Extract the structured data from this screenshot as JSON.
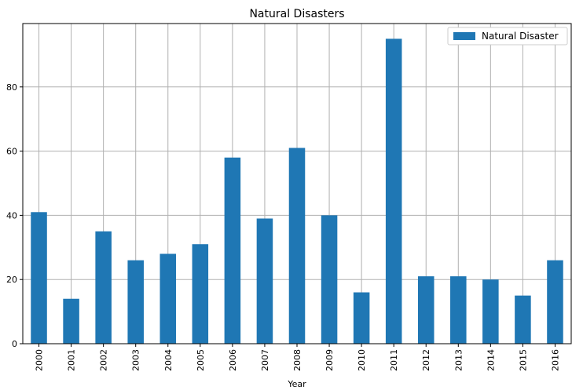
{
  "chart_data": {
    "type": "bar",
    "title": "Natural Disasters",
    "xlabel": "Year",
    "ylabel": "",
    "categories": [
      "2000",
      "2001",
      "2002",
      "2003",
      "2004",
      "2005",
      "2006",
      "2007",
      "2008",
      "2009",
      "2010",
      "2011",
      "2012",
      "2013",
      "2014",
      "2015",
      "2016"
    ],
    "series": [
      {
        "name": "Natural Disaster",
        "values": [
          41,
          14,
          35,
          26,
          28,
          31,
          58,
          39,
          61,
          40,
          16,
          95,
          21,
          21,
          20,
          15,
          26
        ]
      }
    ],
    "ylim": [
      0,
      99.75
    ],
    "yticks": [
      0,
      20,
      40,
      60,
      80
    ],
    "grid": true,
    "legend_position": "top-right",
    "colors": {
      "bar": "#1f77b4",
      "grid": "#b0b0b0",
      "axis": "#000000"
    }
  }
}
